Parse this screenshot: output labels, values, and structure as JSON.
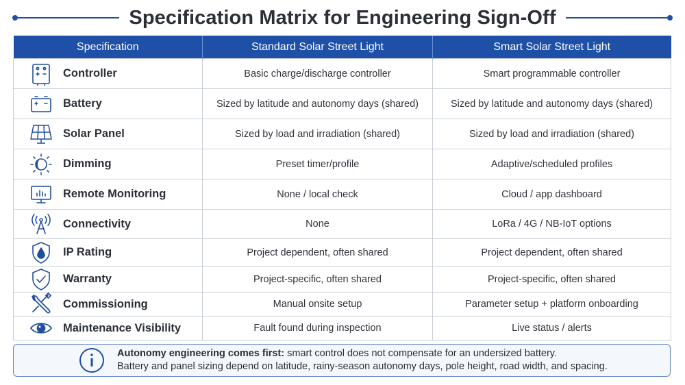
{
  "title": "Specification Matrix for Engineering Sign-Off",
  "columns": [
    "Specification",
    "Standard Solar Street Light",
    "Smart Solar Street Light"
  ],
  "rows": [
    {
      "icon": "controller-icon",
      "spec": "Controller",
      "standard": "Basic charge/discharge controller",
      "smart": "Smart programmable controller"
    },
    {
      "icon": "battery-icon",
      "spec": "Battery",
      "standard": "Sized by latitude and autonomy days (shared)",
      "smart": "Sized by latitude and autonomy days (shared)"
    },
    {
      "icon": "solar-panel-icon",
      "spec": "Solar Panel",
      "standard": "Sized by load and irradiation (shared)",
      "smart": "Sized by load and irradiation (shared)"
    },
    {
      "icon": "dimming-icon",
      "spec": "Dimming",
      "standard": "Preset timer/profile",
      "smart": "Adaptive/scheduled profiles"
    },
    {
      "icon": "monitor-icon",
      "spec": "Remote Monitoring",
      "standard": "None / local check",
      "smart": "Cloud / app dashboard"
    },
    {
      "icon": "antenna-icon",
      "spec": "Connectivity",
      "standard": "None",
      "smart": "LoRa / 4G / NB-IoT options"
    },
    {
      "icon": "water-drop-shield-icon",
      "spec": "IP Rating",
      "standard": "Project dependent, often shared",
      "smart": "Project dependent, often shared"
    },
    {
      "icon": "checkmark-shield-icon",
      "spec": "Warranty",
      "standard": "Project-specific, often shared",
      "smart": "Project-specific, often shared"
    },
    {
      "icon": "tools-icon",
      "spec": "Commissioning",
      "standard": "Manual onsite setup",
      "smart": "Parameter setup + platform onboarding"
    },
    {
      "icon": "eye-icon",
      "spec": "Maintenance Visibility",
      "standard": "Fault found during inspection",
      "smart": "Live status / alerts"
    }
  ],
  "note": {
    "icon": "info-icon",
    "bold": "Autonomy engineering comes first:",
    "line1": " smart control does not compensate for an undersized battery.",
    "line2": "Battery and panel sizing depend on latitude, rainy-season autonomy days, pole height, road width, and spacing."
  },
  "colors": {
    "accent": "#1e50a8",
    "border": "#c9ced6",
    "icon": "#1f4f9e"
  }
}
